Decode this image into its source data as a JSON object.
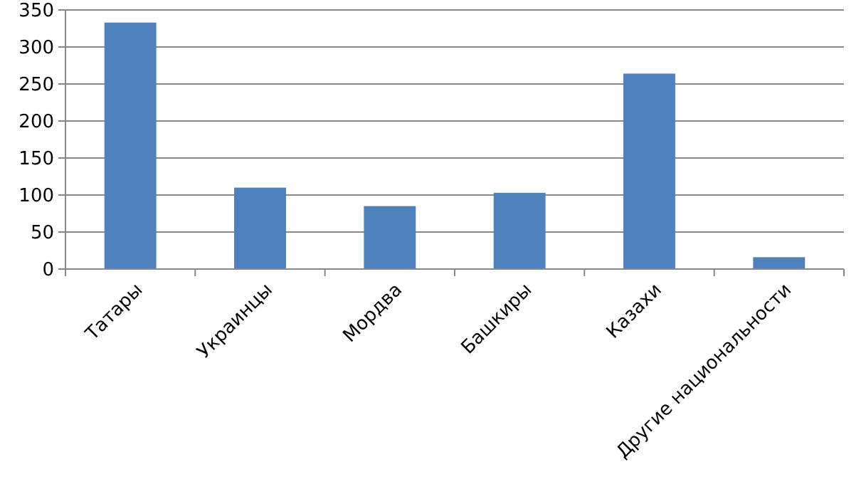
{
  "chart_data": {
    "type": "bar",
    "categories": [
      "Татары",
      "Украинцы",
      "Мордва",
      "Башкиры",
      "Казахи",
      "Другие национальности"
    ],
    "values": [
      333,
      110,
      85,
      103,
      264,
      16
    ],
    "color": "#4f81bd",
    "ylim": [
      0,
      350
    ],
    "yticks": [
      0,
      50,
      100,
      150,
      200,
      250,
      300,
      350
    ],
    "grid": "y"
  }
}
